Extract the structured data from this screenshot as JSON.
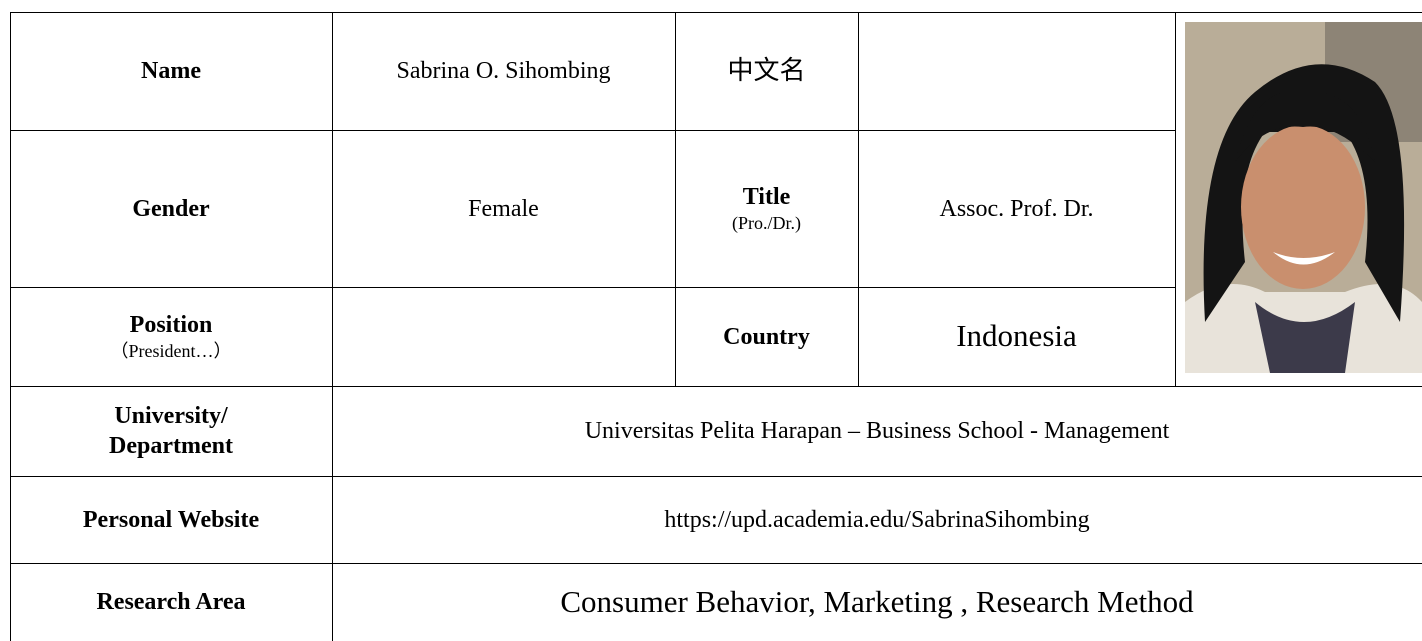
{
  "table": {
    "name": {
      "label": "Name",
      "value": "Sabrina O. Sihombing"
    },
    "chinese_name": {
      "label": "中文名"
    },
    "gender": {
      "label": "Gender",
      "value": "Female"
    },
    "title": {
      "label": "Title",
      "note": "(Pro./Dr.)",
      "value": "Assoc. Prof. Dr."
    },
    "position": {
      "label": "Position",
      "note": "（President…）"
    },
    "country": {
      "label": "Country",
      "value": "Indonesia"
    },
    "university": {
      "label": [
        "University/",
        "Department"
      ],
      "value": "Universitas Pelita Harapan – Business School - Management"
    },
    "website": {
      "label": "Personal Website",
      "value": "https://upd.academia.edu/SabrinaSihombing"
    },
    "research_area": {
      "label": "Research Area",
      "value": "Consumer Behavior, Marketing , Research Method"
    }
  }
}
